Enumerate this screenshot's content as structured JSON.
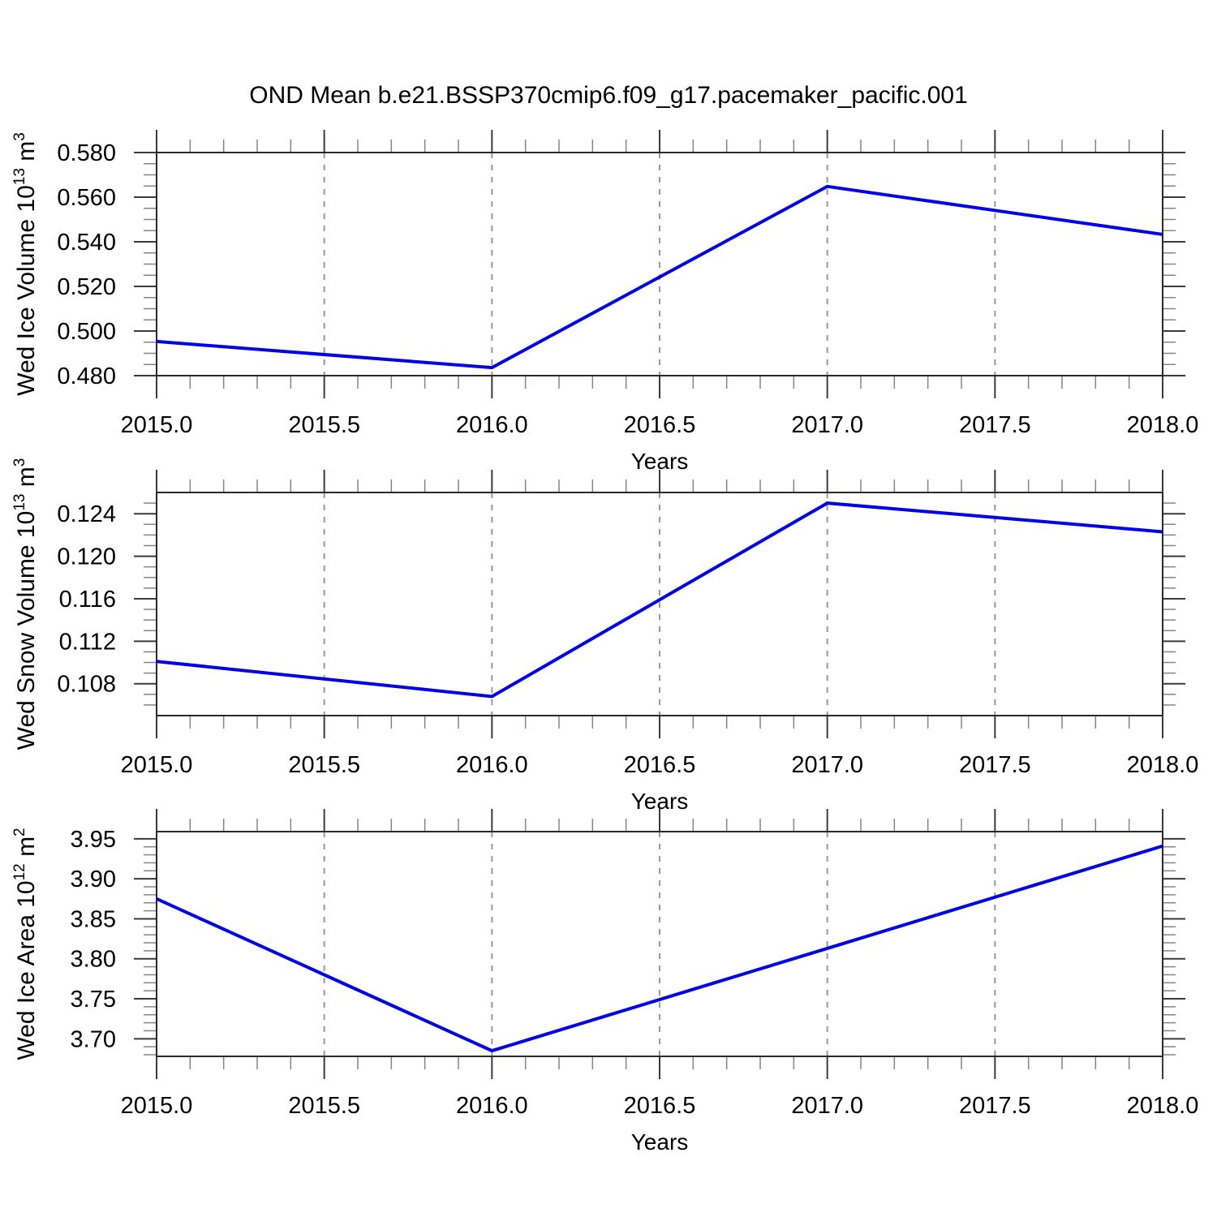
{
  "title": "OND Mean b.e21.BSSP370cmip6.f09_g17.pacemaker_pacific.001",
  "colors": {
    "line": "#0000e6",
    "grid": "#999999",
    "frame": "#2a2a2a",
    "tick_major": "#3a3a3a",
    "tick_minor": "#858585",
    "text": "#000000",
    "background": "#ffffff"
  },
  "chart_data": [
    {
      "type": "line",
      "name": "wed-ice-volume",
      "ylabel_parts": [
        {
          "t": "Wed Ice Volume 10"
        },
        {
          "t": "13",
          "sup": true
        },
        {
          "t": " m"
        },
        {
          "t": "3",
          "sup": true
        }
      ],
      "xlabel": "Years",
      "x": [
        2015.0,
        2016.0,
        2017.0,
        2018.0
      ],
      "values": [
        0.4953,
        0.4836,
        0.5648,
        0.5433
      ],
      "xlim": [
        2015.0,
        2018.0
      ],
      "ylim": [
        0.48,
        0.58
      ],
      "xticks": [
        2015.0,
        2015.5,
        2016.0,
        2016.5,
        2017.0,
        2017.5,
        2018.0
      ],
      "xtick_labels": [
        "2015.0",
        "2015.5",
        "2016.0",
        "2016.5",
        "2017.0",
        "2017.5",
        "2018.0"
      ],
      "yticks": [
        0.48,
        0.5,
        0.52,
        0.54,
        0.56,
        0.58
      ],
      "ytick_labels": [
        "0.480",
        "0.500",
        "0.520",
        "0.540",
        "0.560",
        "0.580"
      ],
      "x_minor_step": 0.1,
      "y_minor_step": 0.005,
      "grid_x": [
        2015.5,
        2016.0,
        2016.5,
        2017.0,
        2017.5
      ]
    },
    {
      "type": "line",
      "name": "wed-snow-volume",
      "ylabel_parts": [
        {
          "t": "Wed Snow Volume 10"
        },
        {
          "t": "13",
          "sup": true
        },
        {
          "t": " m"
        },
        {
          "t": "3",
          "sup": true
        }
      ],
      "xlabel": "Years",
      "x": [
        2015.0,
        2016.0,
        2017.0,
        2018.0
      ],
      "values": [
        0.1101,
        0.1068,
        0.125,
        0.1223
      ],
      "xlim": [
        2015.0,
        2018.0
      ],
      "ylim": [
        0.105,
        0.126
      ],
      "xticks": [
        2015.0,
        2015.5,
        2016.0,
        2016.5,
        2017.0,
        2017.5,
        2018.0
      ],
      "xtick_labels": [
        "2015.0",
        "2015.5",
        "2016.0",
        "2016.5",
        "2017.0",
        "2017.5",
        "2018.0"
      ],
      "yticks": [
        0.108,
        0.112,
        0.116,
        0.12,
        0.124
      ],
      "ytick_labels": [
        "0.108",
        "0.112",
        "0.116",
        "0.120",
        "0.124"
      ],
      "x_minor_step": 0.1,
      "y_minor_step": 0.001,
      "grid_x": [
        2015.5,
        2016.0,
        2016.5,
        2017.0,
        2017.5
      ]
    },
    {
      "type": "line",
      "name": "wed-ice-area",
      "ylabel_parts": [
        {
          "t": "Wed Ice Area 10"
        },
        {
          "t": "12",
          "sup": true
        },
        {
          "t": " m"
        },
        {
          "t": "2",
          "sup": true
        }
      ],
      "xlabel": "Years",
      "x": [
        2015.0,
        2016.0,
        2017.0,
        2018.0
      ],
      "values": [
        3.875,
        3.685,
        3.813,
        3.941
      ],
      "xlim": [
        2015.0,
        2018.0
      ],
      "ylim": [
        3.678,
        3.959
      ],
      "xticks": [
        2015.0,
        2015.5,
        2016.0,
        2016.5,
        2017.0,
        2017.5,
        2018.0
      ],
      "xtick_labels": [
        "2015.0",
        "2015.5",
        "2016.0",
        "2016.5",
        "2017.0",
        "2017.5",
        "2018.0"
      ],
      "yticks": [
        3.7,
        3.75,
        3.8,
        3.85,
        3.9,
        3.95
      ],
      "ytick_labels": [
        "3.70",
        "3.75",
        "3.80",
        "3.85",
        "3.90",
        "3.95"
      ],
      "x_minor_step": 0.1,
      "y_minor_step": 0.01,
      "grid_x": [
        2015.5,
        2016.0,
        2016.5,
        2017.0,
        2017.5
      ]
    }
  ]
}
